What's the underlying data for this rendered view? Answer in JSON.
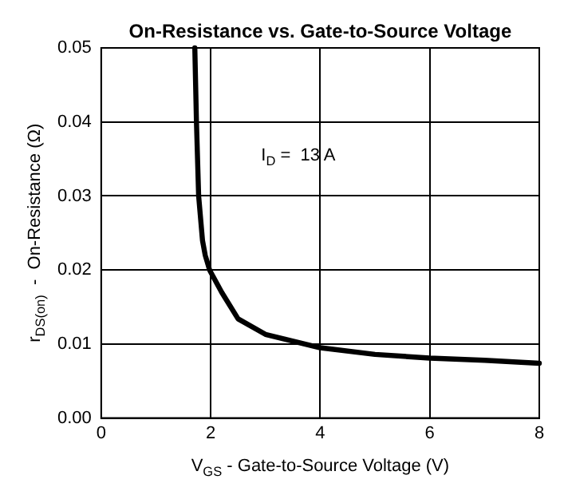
{
  "chart_data": {
    "type": "line",
    "title": "On-Resistance vs. Gate-to-Source Voltage",
    "xlabel": "V$_{GS}$ - Gate-to-Source Voltage (V)",
    "ylabel": "r$_{DS(on)}$  -  On-Resistance (Ω)",
    "annotations": [
      "I$_{D}$ =  13 A"
    ],
    "series": [
      {
        "color": "#000000",
        "x": [
          1.71,
          1.74,
          1.78,
          1.85,
          1.9,
          1.98,
          2.2,
          2.5,
          3,
          4,
          5,
          6,
          7,
          8
        ],
        "values": [
          0.05,
          0.04,
          0.03,
          0.024,
          0.022,
          0.02,
          0.017,
          0.0134,
          0.0113,
          0.0095,
          0.0086,
          0.0081,
          0.0078,
          0.0074
        ]
      }
    ],
    "xlim": [
      0,
      8
    ],
    "xticks": [
      0,
      2,
      4,
      6,
      8
    ],
    "ylim": [
      0,
      0.05
    ],
    "yticks": [
      {
        "value": 0,
        "label": "0.00"
      },
      0.01,
      0.02,
      0.03,
      0.04,
      0.05
    ],
    "grid": true,
    "legend": false,
    "marker": "none",
    "line_style": "solid"
  }
}
